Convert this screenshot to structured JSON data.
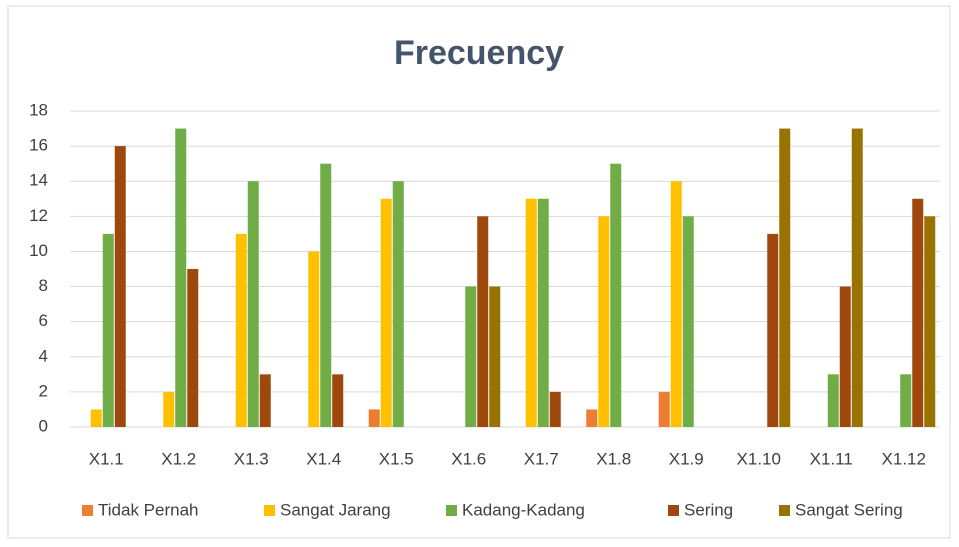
{
  "chart_data": {
    "type": "bar",
    "title": "Frecuency",
    "categories": [
      "X1.1",
      "X1.2",
      "X1.3",
      "X1.4",
      "X1.5",
      "X1.6",
      "X1.7",
      "X1.8",
      "X1.9",
      "X1.10",
      "X1.11",
      "X1.12"
    ],
    "series": [
      {
        "name": "Tidak Pernah",
        "color": "#ed7d31",
        "values": [
          0,
          0,
          0,
          0,
          1,
          0,
          0,
          1,
          2,
          0,
          0,
          0
        ]
      },
      {
        "name": "Sangat Jarang",
        "color": "#ffc000",
        "values": [
          1,
          2,
          11,
          10,
          13,
          0,
          13,
          12,
          14,
          0,
          0,
          0
        ]
      },
      {
        "name": "Kadang-Kadang",
        "color": "#70ad47",
        "values": [
          11,
          17,
          14,
          15,
          14,
          8,
          13,
          15,
          12,
          0,
          3,
          3
        ]
      },
      {
        "name": "Sering",
        "color": "#9e480e",
        "values": [
          16,
          9,
          3,
          3,
          0,
          12,
          2,
          0,
          0,
          11,
          8,
          13
        ]
      },
      {
        "name": "Sangat Sering",
        "color": "#997300",
        "values": [
          0,
          0,
          0,
          0,
          0,
          8,
          0,
          0,
          0,
          17,
          17,
          12
        ]
      }
    ],
    "ylim": [
      0,
      18
    ],
    "yticks": [
      0,
      2,
      4,
      6,
      8,
      10,
      12,
      14,
      16,
      18
    ],
    "grid": true,
    "legend": "bottom"
  }
}
